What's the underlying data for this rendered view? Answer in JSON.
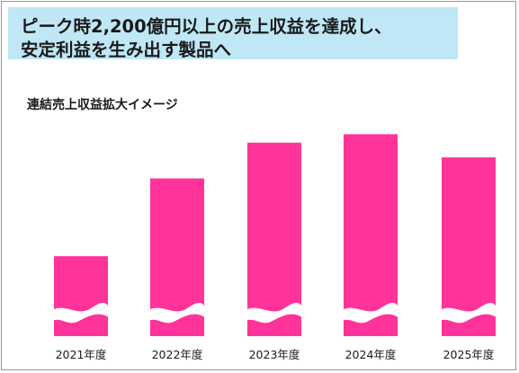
{
  "headline": {
    "line1": "ピーク時2,200億円以上の売上収益を達成し、",
    "line2": "安定利益を生み出す製品へ"
  },
  "chart_data": {
    "type": "bar",
    "title": "連結売上収益拡大イメージ",
    "categories": [
      "2021年度",
      "2022年度",
      "2023年度",
      "2024年度",
      "2025年度"
    ],
    "values": [
      38,
      75,
      92,
      96,
      85
    ],
    "ylim": [
      0,
      100
    ],
    "axis_break": true,
    "xlabel": "",
    "ylabel": "",
    "colors": {
      "bar": "#ff3399",
      "headline_bg": "#bfe7f6"
    }
  }
}
